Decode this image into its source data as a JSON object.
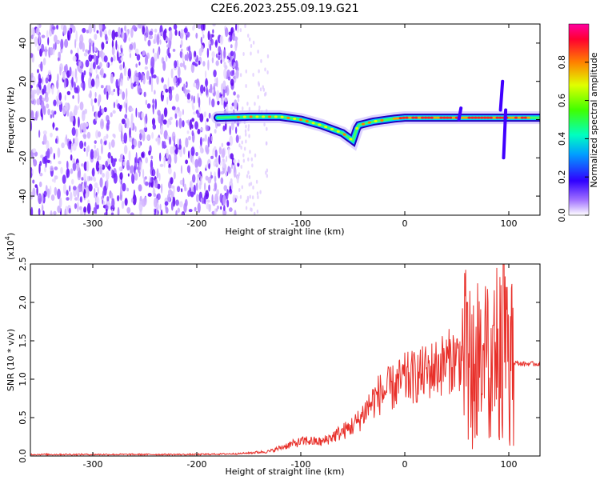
{
  "chart_data": [
    {
      "type": "heatmap",
      "title": "C2E6.2023.255.09.19.G21",
      "xlabel": "Height of straight line (km)",
      "ylabel": "Frequency (Hz)",
      "xlim": [
        -360,
        130
      ],
      "ylim": [
        -50,
        50
      ],
      "xticks": [
        -300,
        -200,
        -100,
        0,
        100
      ],
      "yticks": [
        -40,
        -20,
        0,
        20,
        40
      ],
      "colorbar": {
        "label": "Normalized spectral amplitude",
        "ticks": [
          0.0,
          0.2,
          0.4,
          0.6,
          0.8
        ],
        "range": [
          0,
          1
        ]
      },
      "features": {
        "noise_region_x": [
          -360,
          -160
        ],
        "signal_start_x": -180,
        "signal_track": [
          {
            "x": -180,
            "y": 1
          },
          {
            "x": -150,
            "y": 1.5
          },
          {
            "x": -120,
            "y": 1.5
          },
          {
            "x": -100,
            "y": 0
          },
          {
            "x": -80,
            "y": -3
          },
          {
            "x": -60,
            "y": -7
          },
          {
            "x": -50,
            "y": -11
          },
          {
            "x": -45,
            "y": -3
          },
          {
            "x": -30,
            "y": -1
          },
          {
            "x": -10,
            "y": 0.5
          },
          {
            "x": 0,
            "y": 1
          },
          {
            "x": 50,
            "y": 1
          },
          {
            "x": 100,
            "y": 1
          },
          {
            "x": 130,
            "y": 1
          }
        ]
      }
    },
    {
      "type": "line",
      "xlabel": "Height of straight line (km)",
      "ylabel": "SNR (10 * v/v)",
      "multiplier_label": "(x10",
      "multiplier_exp": "4",
      "multiplier_close": ")",
      "xlim": [
        -360,
        130
      ],
      "ylim": [
        0,
        2.5
      ],
      "xticks": [
        -300,
        -200,
        -100,
        0,
        100
      ],
      "yticks": [
        "0.0",
        "0.5",
        "1.0",
        "1.5",
        "2.0",
        "2.5"
      ],
      "color": "#e8302a",
      "envelope": [
        {
          "x": -360,
          "y": 0.02
        },
        {
          "x": -200,
          "y": 0.02
        },
        {
          "x": -160,
          "y": 0.03
        },
        {
          "x": -130,
          "y": 0.06
        },
        {
          "x": -110,
          "y": 0.15
        },
        {
          "x": -95,
          "y": 0.2
        },
        {
          "x": -80,
          "y": 0.18
        },
        {
          "x": -70,
          "y": 0.25
        },
        {
          "x": -55,
          "y": 0.35
        },
        {
          "x": -45,
          "y": 0.45
        },
        {
          "x": -35,
          "y": 0.65
        },
        {
          "x": -25,
          "y": 0.8
        },
        {
          "x": -10,
          "y": 0.9
        },
        {
          "x": 0,
          "y": 1.0
        },
        {
          "x": 15,
          "y": 1.05
        },
        {
          "x": 30,
          "y": 1.15
        },
        {
          "x": 45,
          "y": 1.25
        },
        {
          "x": 60,
          "y": 1.3
        },
        {
          "x": 75,
          "y": 1.2
        },
        {
          "x": 90,
          "y": 1.3
        },
        {
          "x": 100,
          "y": 1.25
        },
        {
          "x": 110,
          "y": 1.2
        },
        {
          "x": 130,
          "y": 1.2
        }
      ],
      "peaks": [
        {
          "x": 60,
          "y": 2.0
        },
        {
          "x": 85,
          "y": 1.7
        },
        {
          "x": 95,
          "y": 2.5
        },
        {
          "x": 98,
          "y": 2.2
        }
      ]
    }
  ]
}
